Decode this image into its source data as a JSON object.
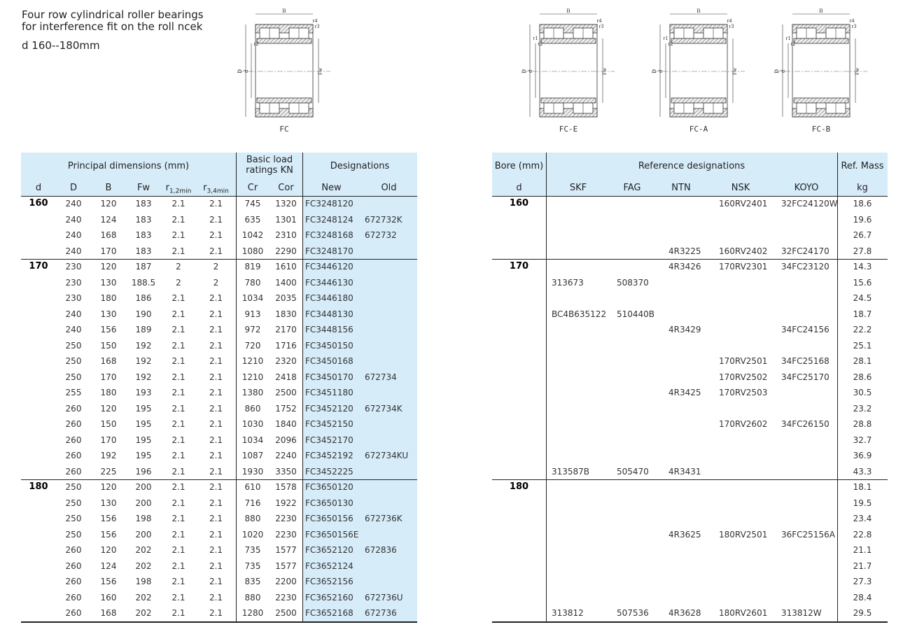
{
  "header": {
    "lines": [
      "Four row cylindrical roller bearings",
      "for interference fit on the roll ncek"
    ],
    "range": "d 160--180mm"
  },
  "drawings": [
    {
      "label": "FC",
      "dimensions": [
        "B",
        "r4",
        "r3",
        "r2",
        "D",
        "d",
        "Fw"
      ]
    },
    {
      "label": "FC-E",
      "dimensions": [
        "B",
        "r4",
        "r3",
        "r1",
        "r2",
        "D",
        "d",
        "Fw"
      ]
    },
    {
      "label": "FC-A",
      "dimensions": [
        "B",
        "r4",
        "r3",
        "r1",
        "r2",
        "D",
        "d",
        "Fw"
      ]
    },
    {
      "label": "FC-B",
      "dimensions": [
        "B",
        "r4",
        "r3",
        "r1",
        "r2",
        "D",
        "d",
        "Fw"
      ]
    }
  ],
  "left_table": {
    "group_headers": {
      "principal": "Principal dimensions (mm)",
      "load": "Basic load ratings KN",
      "designations": "Designations"
    },
    "columns": [
      "d",
      "D",
      "B",
      "Fw",
      {
        "base": "r",
        "sub": "1,2min"
      },
      {
        "base": "r",
        "sub": "3,4min"
      },
      "Cr",
      "Cor",
      "New",
      "Old"
    ],
    "groups": [
      {
        "d": "160",
        "rows": [
          [
            "240",
            "120",
            "183",
            "2.1",
            "2.1",
            "745",
            "1320",
            "FC3248120"
          ],
          [
            "240",
            "124",
            "183",
            "2.1",
            "2.1",
            "635",
            "1301",
            "FC3248124",
            "672732K"
          ],
          [
            "240",
            "168",
            "183",
            "2.1",
            "2.1",
            "1042",
            "2310",
            "FC3248168",
            "672732"
          ],
          [
            "240",
            "170",
            "183",
            "2.1",
            "2.1",
            "1080",
            "2290",
            "FC3248170"
          ]
        ]
      },
      {
        "d": "170",
        "rows": [
          [
            "230",
            "120",
            "187",
            "2",
            "2",
            "819",
            "1610",
            "FC3446120"
          ],
          [
            "230",
            "130",
            "188.5",
            "2",
            "2",
            "780",
            "1400",
            "FC3446130"
          ],
          [
            "230",
            "180",
            "186",
            "2.1",
            "2.1",
            "1034",
            "2035",
            "FC3446180"
          ],
          [
            "240",
            "130",
            "190",
            "2.1",
            "2.1",
            "913",
            "1830",
            "FC3448130"
          ],
          [
            "240",
            "156",
            "189",
            "2.1",
            "2.1",
            "972",
            "2170",
            "FC3448156"
          ],
          [
            "250",
            "150",
            "192",
            "2.1",
            "2.1",
            "720",
            "1716",
            "FC3450150"
          ],
          [
            "250",
            "168",
            "192",
            "2.1",
            "2.1",
            "1210",
            "2320",
            "FC3450168"
          ],
          [
            "250",
            "170",
            "192",
            "2.1",
            "2.1",
            "1210",
            "2418",
            "FC3450170",
            "672734"
          ],
          [
            "255",
            "180",
            "193",
            "2.1",
            "2.1",
            "1380",
            "2500",
            "FC3451180"
          ],
          [
            "260",
            "120",
            "195",
            "2.1",
            "2.1",
            "860",
            "1752",
            "FC3452120",
            "672734K"
          ],
          [
            "260",
            "150",
            "195",
            "2.1",
            "2.1",
            "1030",
            "1840",
            "FC3452150"
          ],
          [
            "260",
            "170",
            "195",
            "2.1",
            "2.1",
            "1034",
            "2096",
            "FC3452170"
          ],
          [
            "260",
            "192",
            "195",
            "2.1",
            "2.1",
            "1087",
            "2240",
            "FC3452192",
            "672734KU"
          ],
          [
            "260",
            "225",
            "196",
            "2.1",
            "2.1",
            "1930",
            "3350",
            "FC3452225"
          ]
        ]
      },
      {
        "d": "180",
        "rows": [
          [
            "250",
            "120",
            "200",
            "2.1",
            "2.1",
            "610",
            "1578",
            "FC3650120"
          ],
          [
            "250",
            "130",
            "200",
            "2.1",
            "2.1",
            "716",
            "1922",
            "FC3650130"
          ],
          [
            "250",
            "156",
            "198",
            "2.1",
            "2.1",
            "880",
            "2230",
            "FC3650156",
            "672736K"
          ],
          [
            "250",
            "156",
            "200",
            "2.1",
            "2.1",
            "1020",
            "2230",
            "FC3650156E"
          ],
          [
            "260",
            "120",
            "202",
            "2.1",
            "2.1",
            "735",
            "1577",
            "FC3652120",
            "672836"
          ],
          [
            "260",
            "124",
            "202",
            "2.1",
            "2.1",
            "735",
            "1577",
            "FC3652124"
          ],
          [
            "260",
            "156",
            "198",
            "2.1",
            "2.1",
            "835",
            "2200",
            "FC3652156"
          ],
          [
            "260",
            "160",
            "202",
            "2.1",
            "2.1",
            "880",
            "2230",
            "FC3652160",
            "672736U"
          ],
          [
            "260",
            "168",
            "202",
            "2.1",
            "2.1",
            "1280",
            "2500",
            "FC3652168",
            "672736"
          ]
        ]
      }
    ]
  },
  "right_table": {
    "group_headers": {
      "bore": "Bore (mm)",
      "reference": "Reference designations",
      "mass": "Ref. Mass"
    },
    "columns": [
      "d",
      "SKF",
      "FAG",
      "NTN",
      "NSK",
      "KOYO",
      "kg"
    ],
    "groups": [
      {
        "d": "160",
        "rows": [
          {
            "nsk": "160RV2401",
            "koyo": "32FC24120W",
            "mass": "18.6"
          },
          {
            "mass": "19.6"
          },
          {
            "mass": "26.7"
          },
          {
            "ntn": "4R3225",
            "nsk": "160RV2402",
            "koyo": "32FC24170",
            "mass": "27.8"
          }
        ]
      },
      {
        "d": "170",
        "rows": [
          {
            "ntn": "4R3426",
            "nsk": "170RV2301",
            "koyo": "34FC23120",
            "mass": "14.3"
          },
          {
            "skf": "313673",
            "fag": "508370",
            "mass": "15.6"
          },
          {
            "mass": "24.5"
          },
          {
            "skf": "BC4B635122",
            "fag": "510440B",
            "mass": "18.7"
          },
          {
            "ntn": "4R3429",
            "koyo": "34FC24156",
            "mass": "22.2"
          },
          {
            "mass": "25.1"
          },
          {
            "nsk": "170RV2501",
            "koyo": "34FC25168",
            "mass": "28.1"
          },
          {
            "nsk": "170RV2502",
            "koyo": "34FC25170",
            "mass": "28.6"
          },
          {
            "ntn": "4R3425",
            "nsk": "170RV2503",
            "mass": "30.5"
          },
          {
            "mass": "23.2"
          },
          {
            "nsk": "170RV2602",
            "koyo": "34FC26150",
            "mass": "28.8"
          },
          {
            "mass": "32.7"
          },
          {
            "mass": "36.9"
          },
          {
            "skf": "313587B",
            "fag": "505470",
            "ntn": "4R3431",
            "mass": "43.3"
          }
        ]
      },
      {
        "d": "180",
        "rows": [
          {
            "mass": "18.1"
          },
          {
            "mass": "19.5"
          },
          {
            "mass": "23.4"
          },
          {
            "ntn": "4R3625",
            "nsk": "180RV2501",
            "koyo": "36FC25156A",
            "mass": "22.8"
          },
          {
            "mass": "21.1"
          },
          {
            "mass": "21.7"
          },
          {
            "mass": "27.3"
          },
          {
            "mass": "28.4"
          },
          {
            "skf": "313812",
            "fag": "507536",
            "ntn": "4R3628",
            "nsk": "180RV2601",
            "koyo": "313812W",
            "mass": "29.5"
          }
        ]
      }
    ]
  }
}
